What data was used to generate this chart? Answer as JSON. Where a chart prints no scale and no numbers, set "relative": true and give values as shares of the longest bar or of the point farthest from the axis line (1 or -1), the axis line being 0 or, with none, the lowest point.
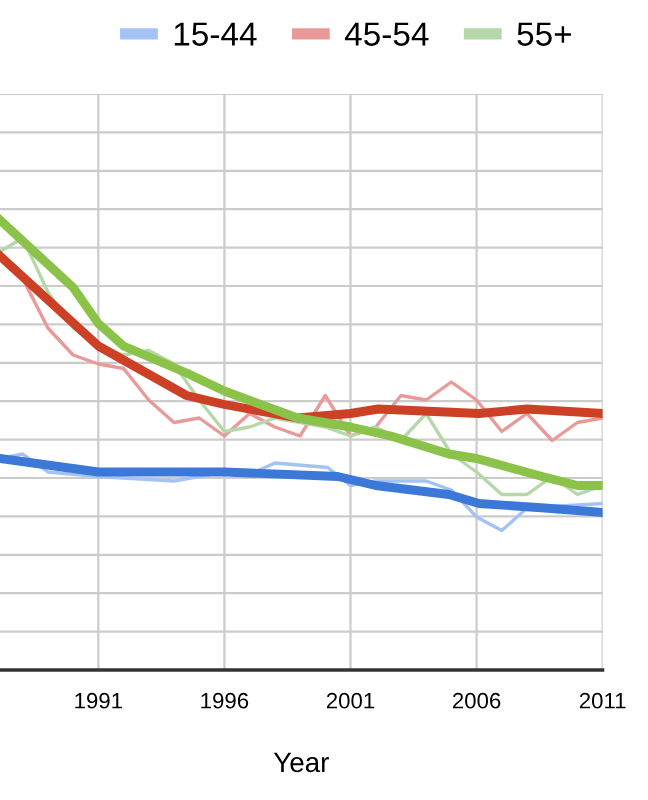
{
  "chart_data": {
    "type": "line",
    "relative": true,
    "xlabel": "Year",
    "legend": "top right",
    "grid": true,
    "marker": "none",
    "line_style": "solid",
    "xlim": [
      1987.1,
      2011
    ],
    "xticks": [
      1991,
      1996,
      2001,
      2006,
      2011
    ],
    "series": [
      {
        "name": "15-44",
        "color": "#a4c2f4",
        "x": [
          1987.1,
          1988,
          1989,
          1991,
          1994,
          1996,
          1997.2,
          1998,
          2000.1,
          2001,
          2002,
          2004,
          2005,
          2006,
          2007,
          2008,
          2011
        ],
        "values": [
          0.47,
          0.48,
          0.44,
          0.43,
          0.42,
          0.44,
          0.44,
          0.46,
          0.45,
          0.41,
          0.42,
          0.42,
          0.4,
          0.34,
          0.31,
          0.36,
          0.37
        ]
      },
      {
        "name": "45-54",
        "color": "#ea9999",
        "x": [
          1987.1,
          1988,
          1989,
          1990,
          1991,
          1992,
          1993,
          1994,
          1995,
          1996,
          1997,
          1998,
          1999,
          2000,
          2001,
          2002,
          2003,
          2004,
          2005,
          2006,
          2007,
          2008,
          2009,
          2010,
          2011
        ],
        "values": [
          0.92,
          0.87,
          0.76,
          0.7,
          0.68,
          0.67,
          0.6,
          0.55,
          0.56,
          0.52,
          0.57,
          0.54,
          0.52,
          0.61,
          0.52,
          0.54,
          0.61,
          0.6,
          0.64,
          0.6,
          0.53,
          0.57,
          0.51,
          0.55,
          0.56
        ]
      },
      {
        "name": "55+",
        "color": "#b6d7a8",
        "x": [
          1987.1,
          1988,
          1989,
          1990,
          1991,
          1992,
          1993,
          1994,
          1995,
          1996,
          1997,
          1998,
          1999,
          2000,
          2001,
          2002,
          2003,
          2004,
          2005,
          2006,
          2007,
          2008,
          2009,
          2010,
          2011
        ],
        "values": [
          0.93,
          0.96,
          0.84,
          0.76,
          0.72,
          0.7,
          0.71,
          0.68,
          0.6,
          0.53,
          0.54,
          0.56,
          0.55,
          0.54,
          0.52,
          0.54,
          0.51,
          0.57,
          0.48,
          0.44,
          0.39,
          0.39,
          0.43,
          0.39,
          0.41
        ]
      },
      {
        "color": "#3c78d8",
        "x": [
          1987.1,
          1991,
          1996,
          2000.5,
          2002,
          2004.9,
          2006.1,
          2008.7,
          2011
        ],
        "values": [
          0.47,
          0.44,
          0.44,
          0.43,
          0.41,
          0.39,
          0.37,
          0.36,
          0.35
        ]
      },
      {
        "color": "#cc4125",
        "x": [
          1987.1,
          1991,
          1994.5,
          1996,
          1998.9,
          2001,
          2002.1,
          2006.1,
          2008,
          2011
        ],
        "values": [
          0.92,
          0.72,
          0.61,
          0.59,
          0.56,
          0.57,
          0.58,
          0.57,
          0.58,
          0.57
        ]
      },
      {
        "color": "#8bc34a",
        "x": [
          1987.1,
          1990,
          1991,
          1992,
          1994.5,
          1996,
          1998.9,
          2001,
          2002.6,
          2004.9,
          2006,
          2008.6,
          2010,
          2011
        ],
        "values": [
          1.0,
          0.85,
          0.77,
          0.72,
          0.66,
          0.62,
          0.56,
          0.54,
          0.52,
          0.48,
          0.47,
          0.43,
          0.41,
          0.41
        ]
      }
    ]
  }
}
